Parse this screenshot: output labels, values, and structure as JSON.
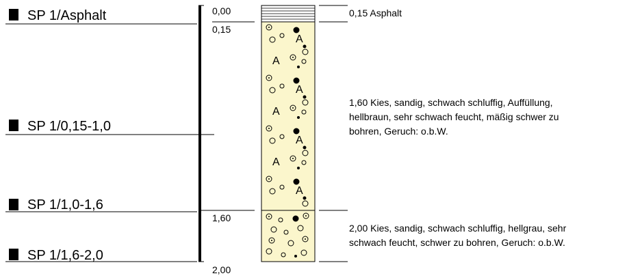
{
  "samples": [
    {
      "label": "SP 1/Asphalt"
    },
    {
      "label": "SP 1/0,15-1,0"
    },
    {
      "label": "SP 1/1,0-1,6"
    },
    {
      "label": "SP 1/1,6-2,0"
    }
  ],
  "depth_scale": {
    "top": "0,00",
    "marks": [
      "0,15",
      "1,60",
      "2,00"
    ]
  },
  "layers": [
    {
      "bottom": "0,15",
      "lines": [
        "0,15  Asphalt"
      ]
    },
    {
      "bottom": "1,60",
      "lines": [
        "1,60  Kies, sandig, schwach schluffig, Auffüllung,",
        "hellbraun, sehr schwach feucht, mäßig schwer zu",
        "bohren, Geruch: o.b.W."
      ]
    },
    {
      "bottom": "2,00",
      "lines": [
        "2,00  Kies, sandig, schwach schluffig, hellgrau, sehr",
        "schwach feucht, schwer zu bohren, Geruch: o.b.W."
      ]
    }
  ],
  "colors": {
    "fill_soil": "#fbf6cc",
    "line": "#000000"
  }
}
